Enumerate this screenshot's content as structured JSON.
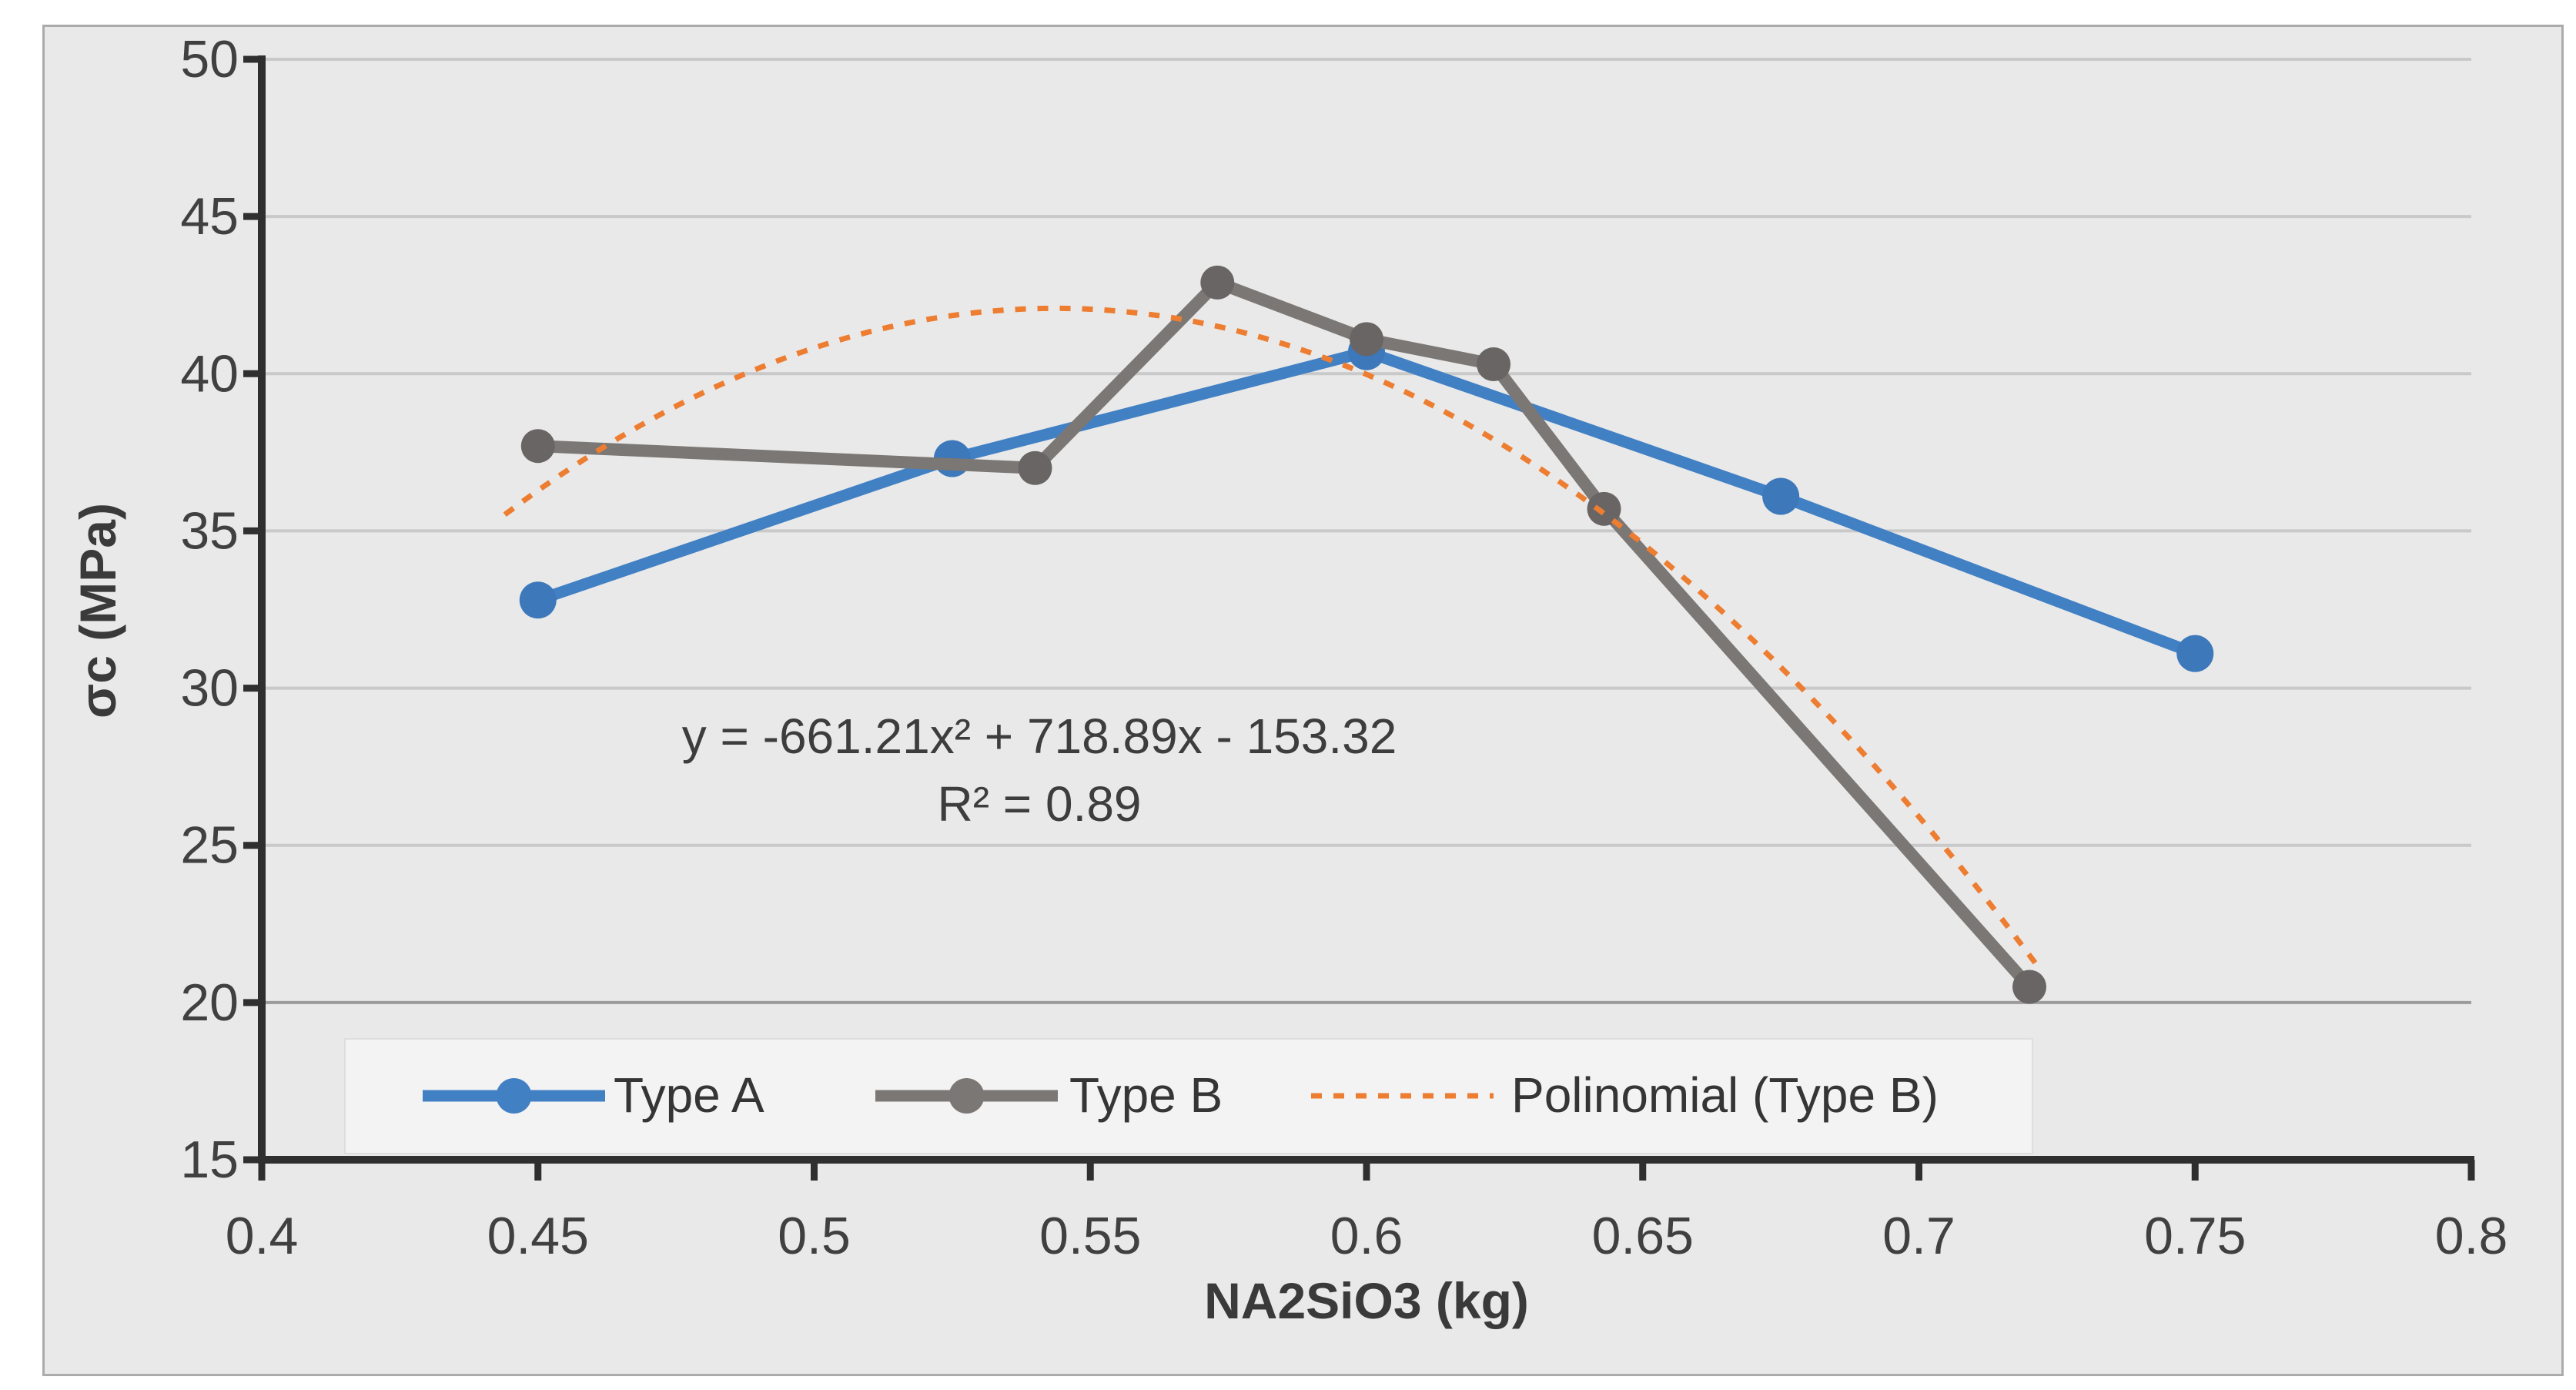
{
  "colors": {
    "page_bg": "#ffffff",
    "chart_bg": "#E9E9E9",
    "chart_border": "#ABABAB",
    "legend_bg": "#F3F3F3",
    "legend_border": "#DEDEDE",
    "gridline": "#C9C9C9",
    "gridline_dark": "#9C9C9C",
    "axis_line": "#2F2F2F",
    "text": "#404040",
    "series_a": "#4280C4",
    "series_a_marker": "#3C78BA",
    "series_b": "#7B7774",
    "series_b_marker": "#686564",
    "trendline": "#ED7D31"
  },
  "chart_data": {
    "type": "line",
    "title": "",
    "xlabel": "NA2SiO3 (kg)",
    "ylabel": "σc (MPa)",
    "xlim": [
      0.4,
      0.8
    ],
    "ylim": [
      15,
      50
    ],
    "x_ticks": [
      "0.4",
      "0.45",
      "0.5",
      "0.55",
      "0.6",
      "0.65",
      "0.7",
      "0.75",
      "0.8"
    ],
    "x_tick_values": [
      0.4,
      0.45,
      0.5,
      0.55,
      0.6,
      0.65,
      0.7,
      0.75,
      0.8
    ],
    "y_ticks": [
      15,
      20,
      25,
      30,
      35,
      40,
      45,
      50
    ],
    "grid": "horizontal-major",
    "legend_position": "bottom-inside",
    "series": [
      {
        "name": "Type A",
        "color_key": "series_a",
        "marker": "circle",
        "points": [
          [
            0.45,
            32.8
          ],
          [
            0.525,
            37.3
          ],
          [
            0.6,
            40.7
          ],
          [
            0.675,
            36.1
          ],
          [
            0.75,
            31.1
          ]
        ]
      },
      {
        "name": "Type B",
        "color_key": "series_b",
        "marker": "circle",
        "points": [
          [
            0.45,
            37.7
          ],
          [
            0.54,
            37.0
          ],
          [
            0.573,
            42.9
          ],
          [
            0.6,
            41.1
          ],
          [
            0.623,
            40.3
          ],
          [
            0.643,
            35.7
          ],
          [
            0.72,
            20.5
          ]
        ]
      }
    ],
    "trendline": {
      "name": "Polinomial (Type B)",
      "applies_to": "Type B",
      "style": "dashed",
      "color_key": "trendline",
      "coefficients": {
        "a": -661.21,
        "b": 718.89,
        "c": -153.32
      },
      "x_range": [
        0.444,
        0.722
      ],
      "equation": "y = -661.21x² + 718.89x - 153.32",
      "r_squared": "R² = 0.89"
    },
    "legend_items": [
      "Type A",
      "Type B",
      "Polinomial (Type B)"
    ]
  }
}
